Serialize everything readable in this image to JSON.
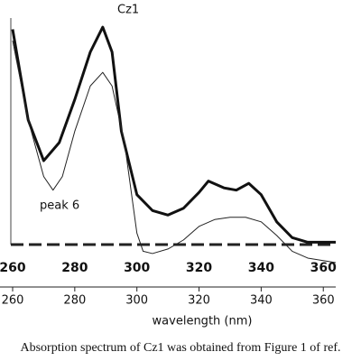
{
  "chart_data": {
    "type": "line",
    "title": "Cz1",
    "annotation": "peak 6",
    "xlabel": "wavelength (nm)",
    "caption": "Absorption spectrum of Cz1 was obtained from Figure 1 of ref.",
    "xlim": [
      260,
      364
    ],
    "ylim": [
      -0.12,
      1
    ],
    "xticks": [
      260,
      280,
      300,
      320,
      340,
      360
    ],
    "series": [
      {
        "color": "#111111",
        "line_width": 3,
        "x": [
          260,
          265,
          270,
          275,
          280,
          285,
          289,
          292,
          295,
          300,
          305,
          310,
          315,
          320,
          323,
          328,
          332,
          336,
          340,
          345,
          350,
          355,
          364
        ],
        "values": [
          0.95,
          0.55,
          0.37,
          0.45,
          0.64,
          0.85,
          0.96,
          0.85,
          0.5,
          0.22,
          0.15,
          0.13,
          0.16,
          0.23,
          0.28,
          0.25,
          0.24,
          0.27,
          0.22,
          0.1,
          0.03,
          0.01,
          0.01
        ]
      },
      {
        "color": "#222222",
        "line_width": 1,
        "x": [
          260,
          265,
          270,
          273,
          276,
          280,
          285,
          289,
          292,
          296,
          300,
          302,
          305,
          310,
          315,
          320,
          325,
          330,
          335,
          340,
          345,
          350,
          355,
          364
        ],
        "values": [
          0.9,
          0.55,
          0.3,
          0.24,
          0.3,
          0.5,
          0.7,
          0.76,
          0.7,
          0.45,
          0.05,
          -0.03,
          -0.04,
          -0.02,
          0.02,
          0.08,
          0.11,
          0.12,
          0.12,
          0.1,
          0.04,
          -0.03,
          -0.06,
          -0.08
        ]
      }
    ]
  }
}
